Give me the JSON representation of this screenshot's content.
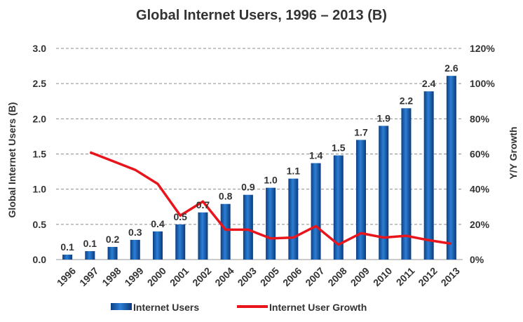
{
  "chart_data": {
    "type": "bar",
    "title": "Global Internet Users, 1996 – 2013 (B)",
    "categories": [
      "1996",
      "1997",
      "1998",
      "1999",
      "2000",
      "2001",
      "2002",
      "2004",
      "2003",
      "2005",
      "2006",
      "2007",
      "2008",
      "2009",
      "2010",
      "2011",
      "2012",
      "2013"
    ],
    "ylabel": "Global Internet Users (B)",
    "y2label": "Y/Y Growth",
    "ylim": [
      0,
      3.0
    ],
    "y2lim": [
      0,
      120
    ],
    "yticks": [
      "0.0",
      "0.5",
      "1.0",
      "1.5",
      "2.0",
      "2.5",
      "3.0"
    ],
    "y2ticks": [
      "0%",
      "20%",
      "40%",
      "60%",
      "80%",
      "100%",
      "120%"
    ],
    "grid": true,
    "legend_position": "bottom",
    "series": [
      {
        "name": "Internet Users",
        "type": "bar",
        "axis": "left",
        "color": "#1f5fae",
        "values": [
          0.07,
          0.12,
          0.18,
          0.28,
          0.4,
          0.5,
          0.67,
          0.79,
          0.92,
          1.02,
          1.15,
          1.37,
          1.48,
          1.7,
          1.9,
          2.15,
          2.39,
          2.61
        ],
        "labels": [
          "0.1",
          "0.1",
          "0.2",
          "0.3",
          "0.4",
          "0.5",
          "0.7",
          "0.8",
          "0.9",
          "1.0",
          "1.1",
          "1.4",
          "1.5",
          "1.7",
          "1.9",
          "2.2",
          "2.4",
          "2.6"
        ]
      },
      {
        "name": "Internet User Growth",
        "type": "line",
        "axis": "right",
        "color": "#e8161c",
        "values": [
          null,
          61,
          56,
          51,
          43,
          25,
          33,
          17,
          17,
          12,
          12.5,
          19,
          8.5,
          15,
          12.5,
          13.5,
          11,
          9
        ]
      }
    ]
  }
}
